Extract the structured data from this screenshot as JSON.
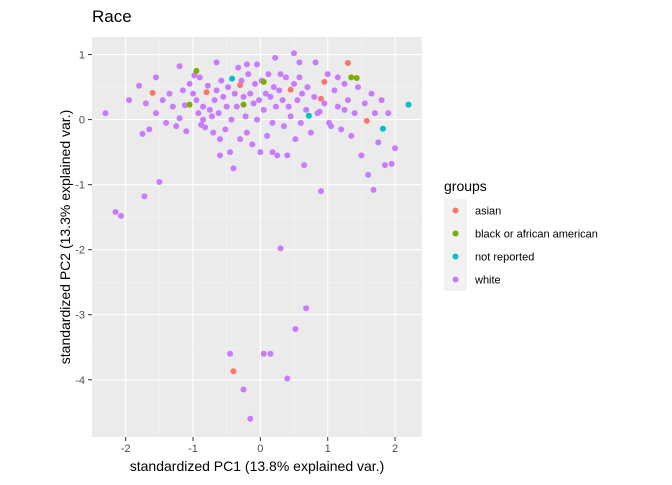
{
  "chart_data": {
    "type": "scatter",
    "title": "Race",
    "xlabel": "standardized PC1 (13.8% explained var.)",
    "ylabel": "standardized PC2 (13.3% explained var.)",
    "xlim": [
      -2.5,
      2.4
    ],
    "ylim": [
      -4.88,
      1.27
    ],
    "xticks": [
      -2,
      -1,
      0,
      1,
      2
    ],
    "yticks": [
      1,
      0,
      -1,
      -2,
      -3,
      -4
    ],
    "grid": true,
    "legend_position": "right",
    "legend_title": "groups",
    "series": [
      {
        "name": "asian",
        "color": "#F8766D",
        "points": [
          [
            -1.6,
            0.41
          ],
          [
            -0.8,
            0.42
          ],
          [
            -0.3,
            0.53
          ],
          [
            -0.4,
            -3.87
          ],
          [
            0.45,
            0.46
          ],
          [
            0.9,
            0.32
          ],
          [
            0.95,
            0.58
          ],
          [
            1.3,
            0.87
          ],
          [
            1.58,
            -0.02
          ]
        ]
      },
      {
        "name": "black or african american",
        "color": "#7CAE00",
        "points": [
          [
            -1.05,
            0.23
          ],
          [
            -0.95,
            0.75
          ],
          [
            -0.25,
            0.23
          ],
          [
            0.05,
            0.58
          ],
          [
            1.43,
            0.64
          ],
          [
            1.35,
            0.65
          ]
        ]
      },
      {
        "name": "not reported",
        "color": "#00BFC4",
        "points": [
          [
            -0.42,
            0.63
          ],
          [
            0.72,
            0.06
          ],
          [
            1.82,
            -0.14
          ],
          [
            2.2,
            0.23
          ]
        ]
      },
      {
        "name": "white",
        "color": "#C77CFF",
        "points": [
          [
            -2.3,
            0.1
          ],
          [
            -2.15,
            -1.42
          ],
          [
            -2.07,
            -1.48
          ],
          [
            -1.95,
            0.3
          ],
          [
            -1.8,
            0.52
          ],
          [
            -1.75,
            -0.22
          ],
          [
            -1.72,
            -1.18
          ],
          [
            -1.7,
            0.25
          ],
          [
            -1.65,
            -0.15
          ],
          [
            -1.55,
            0.1
          ],
          [
            -1.5,
            -0.96
          ],
          [
            -1.45,
            0.3
          ],
          [
            -1.35,
            0.4
          ],
          [
            -1.3,
            0.2
          ],
          [
            -1.25,
            -0.1
          ],
          [
            -1.2,
            0.02
          ],
          [
            -1.15,
            0.45
          ],
          [
            -1.12,
            0.22
          ],
          [
            -1.1,
            -0.18
          ],
          [
            -1.05,
            0.55
          ],
          [
            -1.0,
            0.4
          ],
          [
            -0.95,
            0.3
          ],
          [
            -0.92,
            0.1
          ],
          [
            -0.9,
            0.65
          ],
          [
            -0.88,
            -0.08
          ],
          [
            -0.85,
            0.2
          ],
          [
            -0.82,
            -0.12
          ],
          [
            -0.78,
            0.52
          ],
          [
            -0.75,
            0.15
          ],
          [
            -0.72,
            0.05
          ],
          [
            -0.7,
            -0.2
          ],
          [
            -0.68,
            0.3
          ],
          [
            -0.65,
            0.45
          ],
          [
            -0.62,
            0.1
          ],
          [
            -0.6,
            -0.3
          ],
          [
            -0.58,
            0.6
          ],
          [
            -0.55,
            0.35
          ],
          [
            -0.52,
            -0.15
          ],
          [
            -0.5,
            0.2
          ],
          [
            -0.48,
            0.5
          ],
          [
            -0.45,
            -0.5
          ],
          [
            -0.43,
            0.0
          ],
          [
            -0.4,
            -0.75
          ],
          [
            -0.38,
            0.4
          ],
          [
            -0.35,
            0.2
          ],
          [
            -0.33,
            0.8
          ],
          [
            -0.3,
            -0.3
          ],
          [
            -0.28,
            0.6
          ],
          [
            -0.25,
            0.35
          ],
          [
            -0.22,
            0.05
          ],
          [
            -0.2,
            -0.2
          ],
          [
            -0.18,
            0.7
          ],
          [
            -0.15,
            0.4
          ],
          [
            -0.12,
            -0.38
          ],
          [
            -0.1,
            0.25
          ],
          [
            -0.08,
            0.55
          ],
          [
            -0.05,
            0.0
          ],
          [
            -0.02,
            0.3
          ],
          [
            0.0,
            -0.5
          ],
          [
            0.02,
            0.6
          ],
          [
            0.05,
            0.15
          ],
          [
            0.08,
            0.4
          ],
          [
            0.1,
            -0.25
          ],
          [
            0.12,
            0.7
          ],
          [
            0.15,
            0.35
          ],
          [
            0.18,
            -0.05
          ],
          [
            0.2,
            0.5
          ],
          [
            0.23,
            0.2
          ],
          [
            0.25,
            -0.55
          ],
          [
            0.28,
            0.45
          ],
          [
            0.3,
            -1.98
          ],
          [
            0.33,
            0.3
          ],
          [
            0.35,
            -0.1
          ],
          [
            0.38,
            0.65
          ],
          [
            0.4,
            -0.55
          ],
          [
            0.42,
            0.2
          ],
          [
            0.45,
            0.05
          ],
          [
            0.5,
            0.55
          ],
          [
            0.52,
            -0.3
          ],
          [
            0.55,
            0.3
          ],
          [
            0.58,
            0.88
          ],
          [
            0.6,
            -0.05
          ],
          [
            0.62,
            0.4
          ],
          [
            0.65,
            -0.7
          ],
          [
            0.68,
            0.15
          ],
          [
            0.7,
            0.5
          ],
          [
            0.75,
            -0.2
          ],
          [
            0.8,
            0.35
          ],
          [
            0.85,
            0.1
          ],
          [
            0.9,
            -1.1
          ],
          [
            0.95,
            0.25
          ],
          [
            1.0,
            0.7
          ],
          [
            1.05,
            -0.1
          ],
          [
            1.1,
            0.45
          ],
          [
            1.15,
            0.2
          ],
          [
            1.2,
            -0.15
          ],
          [
            1.25,
            0.55
          ],
          [
            1.3,
            0.3
          ],
          [
            1.35,
            -0.25
          ],
          [
            1.4,
            0.1
          ],
          [
            1.45,
            0.5
          ],
          [
            1.5,
            -0.55
          ],
          [
            1.55,
            0.25
          ],
          [
            1.6,
            -0.85
          ],
          [
            1.65,
            0.4
          ],
          [
            1.7,
            0.1
          ],
          [
            1.75,
            -0.35
          ],
          [
            1.8,
            0.3
          ],
          [
            1.85,
            -0.7
          ],
          [
            1.9,
            0.1
          ],
          [
            1.95,
            -0.68
          ],
          [
            2.0,
            -0.44
          ],
          [
            1.68,
            -1.08
          ],
          [
            -0.98,
            0.68
          ],
          [
            -0.15,
            -4.6
          ],
          [
            -0.25,
            -4.15
          ],
          [
            -0.45,
            -3.6
          ],
          [
            0.05,
            -3.6
          ],
          [
            0.15,
            -3.6
          ],
          [
            0.4,
            -3.98
          ],
          [
            0.52,
            -3.22
          ],
          [
            0.68,
            -2.9
          ],
          [
            0.5,
            1.02
          ],
          [
            0.22,
            0.95
          ],
          [
            -0.05,
            0.85
          ],
          [
            -0.65,
            0.88
          ],
          [
            -1.2,
            0.82
          ],
          [
            -1.55,
            0.65
          ],
          [
            1.15,
            0.65
          ],
          [
            0.82,
            0.88
          ],
          [
            0.3,
            0.7
          ],
          [
            -0.2,
            0.85
          ],
          [
            -0.85,
            0.0
          ],
          [
            -0.6,
            -0.55
          ],
          [
            0.18,
            -0.5
          ],
          [
            0.88,
            0.12
          ],
          [
            -1.4,
            -0.05
          ],
          [
            1.02,
            -0.05
          ],
          [
            0.58,
            0.65
          ],
          [
            1.25,
            0.15
          ]
        ]
      }
    ]
  }
}
